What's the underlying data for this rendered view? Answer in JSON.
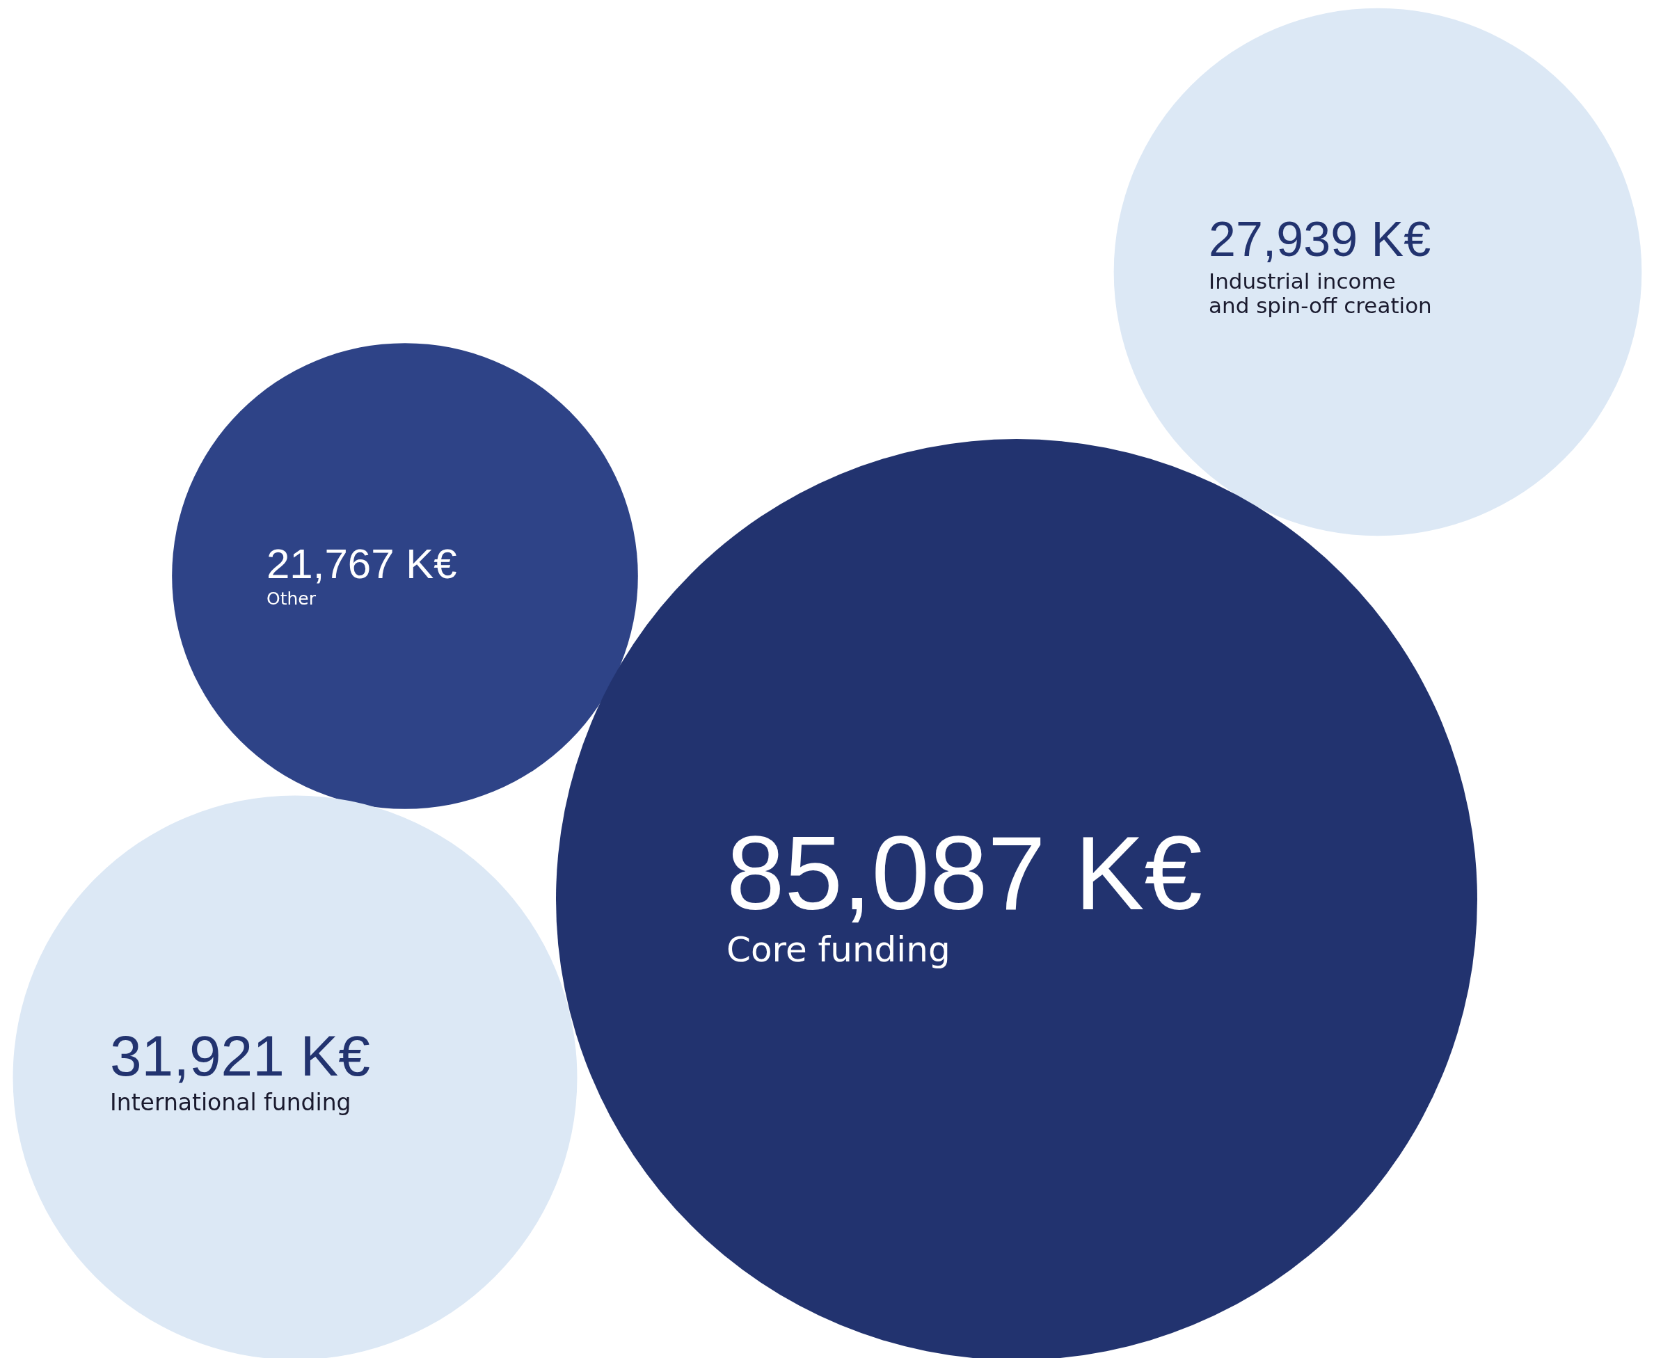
{
  "chart_data": {
    "type": "other",
    "categories": [
      "Industrial income and spin-off creation",
      "Other",
      "Core funding",
      "International funding"
    ],
    "values": [
      27939,
      21767,
      85087,
      31921
    ],
    "value_labels": [
      "27,939 K€",
      "21,767 K€",
      "85,087 K€",
      "31,921 K€"
    ],
    "colors": [
      "#dce8f5",
      "#2e4387",
      "#22336f",
      "#dce8f5"
    ]
  }
}
